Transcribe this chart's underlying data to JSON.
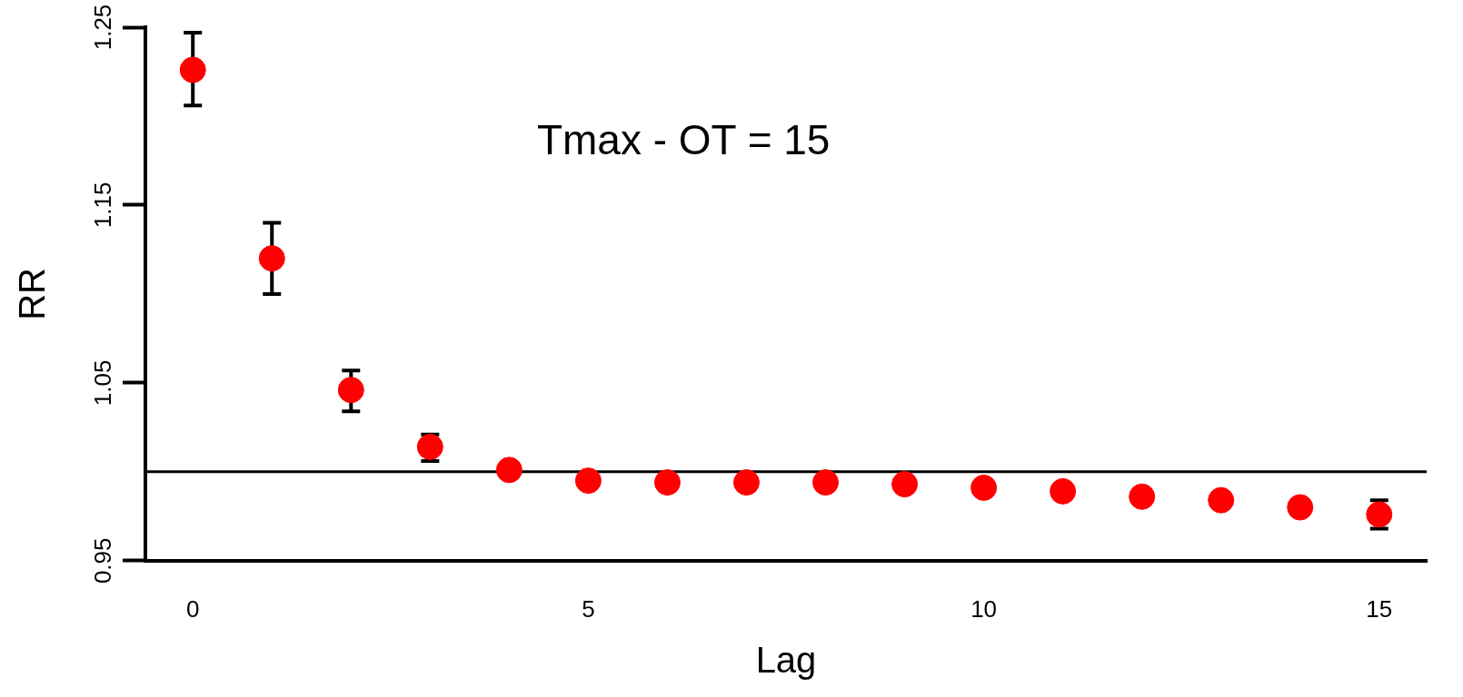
{
  "chart_data": {
    "type": "scatter",
    "xlabel": "Lag",
    "ylabel": "RR",
    "annotations": [
      "Tmax - OT = 15"
    ],
    "x": [
      0,
      1,
      2,
      3,
      4,
      5,
      6,
      7,
      8,
      9,
      10,
      11,
      12,
      13,
      14,
      15
    ],
    "series": [
      {
        "color": "#ff0000",
        "values": [
          1.226,
          1.12,
          1.046,
          1.014,
          1.001,
          0.995,
          0.994,
          0.994,
          0.994,
          0.993,
          0.991,
          0.989,
          0.986,
          0.984,
          0.98,
          0.976
        ],
        "errors": [
          [
            1.206,
            1.247
          ],
          [
            1.1,
            1.14
          ],
          [
            1.034,
            1.057
          ],
          [
            1.006,
            1.021
          ],
          null,
          null,
          null,
          null,
          null,
          null,
          null,
          null,
          null,
          null,
          null,
          [
            0.968,
            0.984
          ]
        ]
      }
    ],
    "xlim": [
      -0.6,
      15.6
    ],
    "xticks": [
      0,
      5,
      10,
      15
    ],
    "ylim": [
      0.95,
      1.25
    ],
    "yticks": [
      0.95,
      1.05,
      1.15,
      1.25
    ],
    "ref_lines": [
      {
        "axis": "y",
        "value": 1,
        "color": "#000000"
      }
    ],
    "marker": "circle",
    "grid": false,
    "legend": false
  }
}
